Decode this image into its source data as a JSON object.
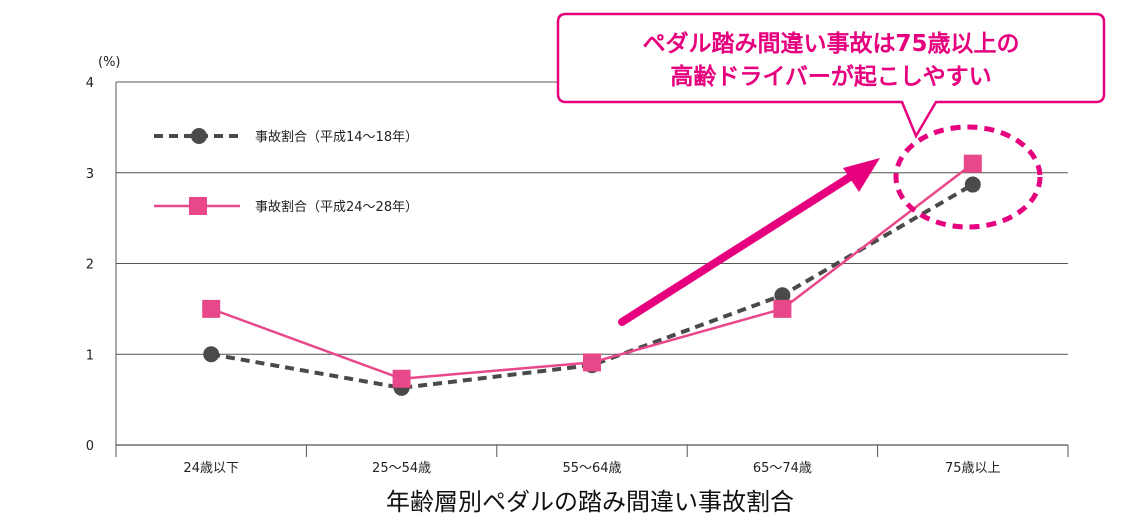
{
  "chart_data": {
    "type": "line",
    "title": "年齢層別ペダルの踏み間違い事故割合",
    "ylabel": "(%)",
    "xlabel": "",
    "ylim": [
      0,
      4
    ],
    "yticks": [
      "0",
      "1",
      "2",
      "3",
      "4"
    ],
    "grid": true,
    "legend_position": "top-left",
    "categories": [
      "24歳以下",
      "25〜54歳",
      "55〜64歳",
      "65〜74歳",
      "75歳以上"
    ],
    "series": [
      {
        "name": "事故割合（平成14〜18年）",
        "values": [
          1.0,
          0.63,
          0.88,
          1.65,
          2.87
        ],
        "color": "#4a4a4a",
        "style": "dashed",
        "marker": "circle"
      },
      {
        "name": "事故割合（平成24〜28年）",
        "values": [
          1.5,
          0.73,
          0.91,
          1.5,
          3.1
        ],
        "color": "#e8488a",
        "style": "solid",
        "marker": "square"
      }
    ],
    "annotations": {
      "callout_lines": [
        "ペダル踏み間違い事故は75歳以上の",
        "高齢ドライバーが起こしやすい"
      ],
      "accent_color": "#e6007e"
    }
  }
}
